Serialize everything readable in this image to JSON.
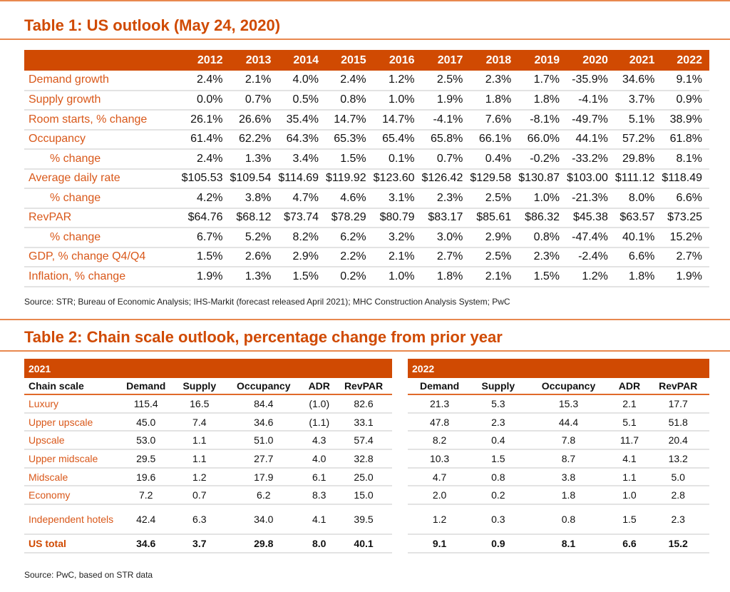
{
  "table1": {
    "title": "Table 1: US outlook (May 24, 2020)",
    "years": [
      "2012",
      "2013",
      "2014",
      "2015",
      "2016",
      "2017",
      "2018",
      "2019",
      "2020",
      "2021",
      "2022"
    ],
    "rows": [
      {
        "label": "Demand growth",
        "sub": false,
        "values": [
          "2.4%",
          "2.1%",
          "4.0%",
          "2.4%",
          "1.2%",
          "2.5%",
          "2.3%",
          "1.7%",
          "-35.9%",
          "34.6%",
          "9.1%"
        ]
      },
      {
        "label": "Supply growth",
        "sub": false,
        "values": [
          "0.0%",
          "0.7%",
          "0.5%",
          "0.8%",
          "1.0%",
          "1.9%",
          "1.8%",
          "1.8%",
          "-4.1%",
          "3.7%",
          "0.9%"
        ]
      },
      {
        "label": "Room starts, % change",
        "sub": false,
        "values": [
          "26.1%",
          "26.6%",
          "35.4%",
          "14.7%",
          "14.7%",
          "-4.1%",
          "7.6%",
          "-8.1%",
          "-49.7%",
          "5.1%",
          "38.9%"
        ]
      },
      {
        "label": "Occupancy",
        "sub": false,
        "values": [
          "61.4%",
          "62.2%",
          "64.3%",
          "65.3%",
          "65.4%",
          "65.8%",
          "66.1%",
          "66.0%",
          "44.1%",
          "57.2%",
          "61.8%"
        ]
      },
      {
        "label": "% change",
        "sub": true,
        "values": [
          "2.4%",
          "1.3%",
          "3.4%",
          "1.5%",
          "0.1%",
          "0.7%",
          "0.4%",
          "-0.2%",
          "-33.2%",
          "29.8%",
          "8.1%"
        ]
      },
      {
        "label": "Average daily rate",
        "sub": false,
        "values": [
          "$105.53",
          "$109.54",
          "$114.69",
          "$119.92",
          "$123.60",
          "$126.42",
          "$129.58",
          "$130.87",
          "$103.00",
          "$111.12",
          "$118.49"
        ]
      },
      {
        "label": "% change",
        "sub": true,
        "values": [
          "4.2%",
          "3.8%",
          "4.7%",
          "4.6%",
          "3.1%",
          "2.3%",
          "2.5%",
          "1.0%",
          "-21.3%",
          "8.0%",
          "6.6%"
        ]
      },
      {
        "label": "RevPAR",
        "sub": false,
        "values": [
          "$64.76",
          "$68.12",
          "$73.74",
          "$78.29",
          "$80.79",
          "$83.17",
          "$85.61",
          "$86.32",
          "$45.38",
          "$63.57",
          "$73.25"
        ]
      },
      {
        "label": "% change",
        "sub": true,
        "values": [
          "6.7%",
          "5.2%",
          "8.2%",
          "6.2%",
          "3.2%",
          "3.0%",
          "2.9%",
          "0.8%",
          "-47.4%",
          "40.1%",
          "15.2%"
        ]
      },
      {
        "label": "GDP, % change Q4/Q4",
        "sub": false,
        "values": [
          "1.5%",
          "2.6%",
          "2.9%",
          "2.2%",
          "2.1%",
          "2.7%",
          "2.5%",
          "2.3%",
          "-2.4%",
          "6.6%",
          "2.7%"
        ]
      },
      {
        "label": "Inflation, % change",
        "sub": false,
        "values": [
          "1.9%",
          "1.3%",
          "1.5%",
          "0.2%",
          "1.0%",
          "1.8%",
          "2.1%",
          "1.5%",
          "1.2%",
          "1.8%",
          "1.9%"
        ]
      }
    ],
    "source": "Source: STR; Bureau of Economic Analysis; IHS-Markit (forecast released April 2021); MHC Construction Analysis System; PwC"
  },
  "table2": {
    "title": "Table 2: Chain scale outlook, percentage change from prior year",
    "left": {
      "year": "2021",
      "columns": [
        "Chain scale",
        "Demand",
        "Supply",
        "Occupancy",
        "ADR",
        "RevPAR"
      ]
    },
    "right": {
      "year": "2022",
      "columns": [
        "Demand",
        "Supply",
        "Occupancy",
        "ADR",
        "RevPAR"
      ]
    },
    "rows": [
      {
        "label": "Luxury",
        "y2021": [
          "115.4",
          "16.5",
          "84.4",
          "(1.0)",
          "82.6"
        ],
        "y2022": [
          "21.3",
          "5.3",
          "15.3",
          "2.1",
          "17.7"
        ]
      },
      {
        "label": "Upper upscale",
        "y2021": [
          "45.0",
          "7.4",
          "34.6",
          "(1.1)",
          "33.1"
        ],
        "y2022": [
          "47.8",
          "2.3",
          "44.4",
          "5.1",
          "51.8"
        ]
      },
      {
        "label": "Upscale",
        "y2021": [
          "53.0",
          "1.1",
          "51.0",
          "4.3",
          "57.4"
        ],
        "y2022": [
          "8.2",
          "0.4",
          "7.8",
          "11.7",
          "20.4"
        ]
      },
      {
        "label": "Upper midscale",
        "y2021": [
          "29.5",
          "1.1",
          "27.7",
          "4.0",
          "32.8"
        ],
        "y2022": [
          "10.3",
          "1.5",
          "8.7",
          "4.1",
          "13.2"
        ]
      },
      {
        "label": "Midscale",
        "y2021": [
          "19.6",
          "1.2",
          "17.9",
          "6.1",
          "25.0"
        ],
        "y2022": [
          "4.7",
          "0.8",
          "3.8",
          "1.1",
          "5.0"
        ]
      },
      {
        "label": "Economy",
        "y2021": [
          "7.2",
          "0.7",
          "6.2",
          "8.3",
          "15.0"
        ],
        "y2022": [
          "2.0",
          "0.2",
          "1.8",
          "1.0",
          "2.8"
        ]
      },
      {
        "label": "Independent hotels",
        "y2021": [
          "42.4",
          "6.3",
          "34.0",
          "4.1",
          "39.5"
        ],
        "y2022": [
          "1.2",
          "0.3",
          "0.8",
          "1.5",
          "2.3"
        ]
      },
      {
        "label": "US total",
        "y2021": [
          "34.6",
          "3.7",
          "29.8",
          "8.0",
          "40.1"
        ],
        "y2022": [
          "9.1",
          "0.9",
          "8.1",
          "6.6",
          "15.2"
        ]
      }
    ],
    "source": "Source: PwC, based on STR data"
  }
}
